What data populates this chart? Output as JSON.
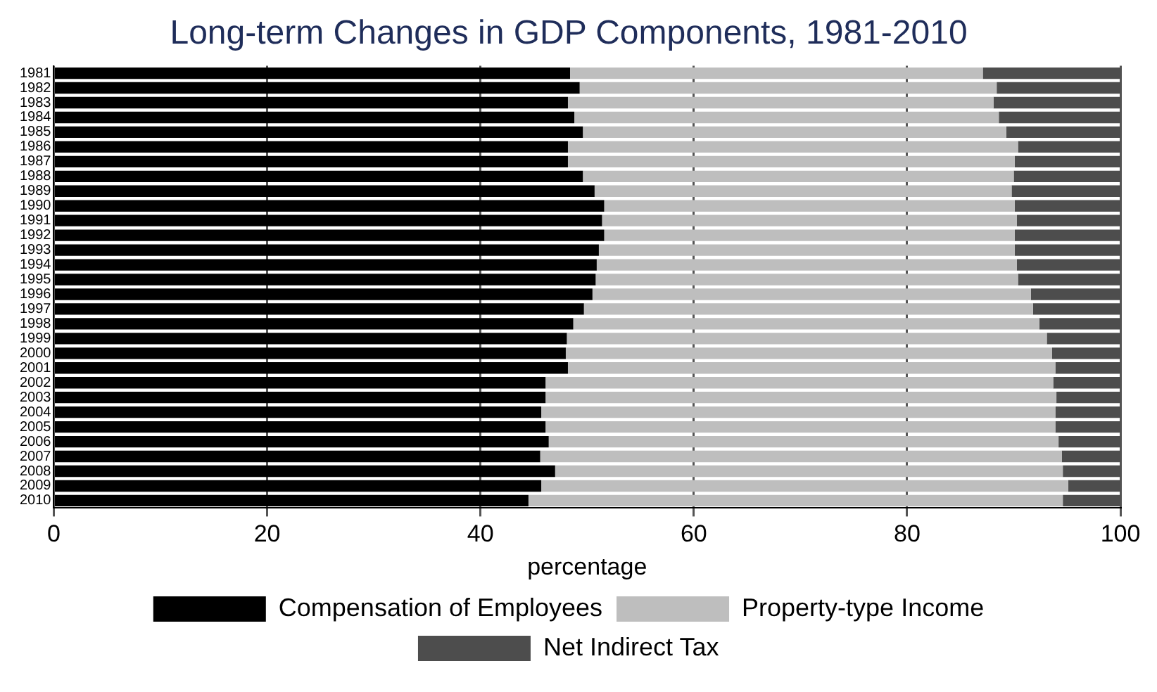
{
  "chart_data": {
    "type": "bar",
    "orientation": "horizontal",
    "stacked": true,
    "title": "Long-term Changes in GDP Components, 1981-2010",
    "xlabel": "percentage",
    "categories": [
      "1981",
      "1982",
      "1983",
      "1984",
      "1985",
      "1986",
      "1987",
      "1988",
      "1989",
      "1990",
      "1991",
      "1992",
      "1993",
      "1994",
      "1995",
      "1996",
      "1997",
      "1998",
      "1999",
      "2000",
      "2001",
      "2002",
      "2003",
      "2004",
      "2005",
      "2006",
      "2007",
      "2008",
      "2009",
      "2010"
    ],
    "series": [
      {
        "name": "Compensation of Employees",
        "color": "#000000",
        "values": [
          48.4,
          49.3,
          48.2,
          48.8,
          49.6,
          48.2,
          48.2,
          49.6,
          50.7,
          51.6,
          51.4,
          51.6,
          51.1,
          50.9,
          50.8,
          50.5,
          49.7,
          48.7,
          48.1,
          48.0,
          48.2,
          46.1,
          46.1,
          45.7,
          46.1,
          46.4,
          45.6,
          47.0,
          45.7,
          44.5
        ]
      },
      {
        "name": "Property-type Income",
        "color": "#bebebe",
        "values": [
          38.7,
          39.1,
          39.9,
          39.8,
          39.7,
          42.2,
          41.9,
          40.4,
          39.1,
          38.5,
          38.9,
          38.5,
          39.0,
          39.4,
          39.6,
          41.1,
          42.1,
          43.7,
          45.0,
          45.6,
          45.7,
          47.6,
          47.9,
          48.2,
          47.8,
          47.8,
          48.9,
          47.6,
          49.4,
          50.1
        ]
      },
      {
        "name": "Net Indirect Tax",
        "color": "#4d4d4d",
        "values": [
          12.9,
          11.6,
          11.9,
          11.4,
          10.7,
          9.6,
          9.9,
          10.0,
          10.2,
          9.9,
          9.7,
          9.9,
          9.9,
          9.7,
          9.6,
          8.4,
          8.2,
          7.6,
          6.9,
          6.4,
          6.1,
          6.3,
          6.0,
          6.1,
          6.1,
          5.8,
          5.5,
          5.4,
          4.9,
          5.4
        ]
      }
    ],
    "xlim": [
      0,
      100
    ],
    "xticks": [
      0,
      20,
      40,
      60,
      80,
      100
    ],
    "grid": "x",
    "legend": "bottom"
  }
}
